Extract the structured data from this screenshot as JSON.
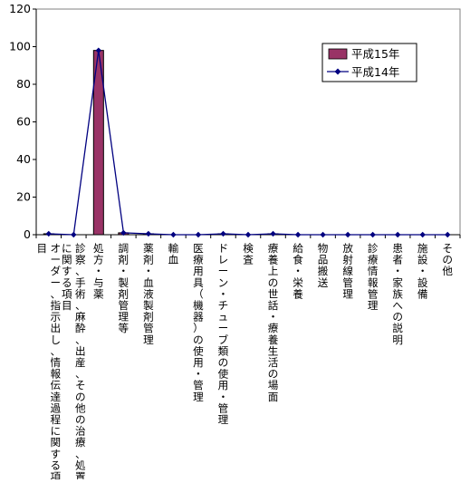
{
  "chart_data": {
    "type": "bar",
    "title": "",
    "xlabel": "",
    "ylabel": "",
    "ylim": [
      0,
      120
    ],
    "yticks": [
      0,
      20,
      40,
      60,
      80,
      100,
      120
    ],
    "grid": false,
    "legend_position": "top-right",
    "categories": [
      "オーダー、指示出し、情報伝達過程に関する項目",
      "診察、手術、麻酔、出産、その他の治療、処置に関する項目",
      "処方・与薬",
      "調剤・製剤管理等",
      "薬剤・血液製剤管理",
      "輸血",
      "医療用具（機器）の使用・管理",
      "ドレーン・チューブ類の使用・管理",
      "検査",
      "療養上の世話・療養生活の場面",
      "給食・栄養",
      "物品搬送",
      "放射線管理",
      "診療情報管理",
      "患者・家族への説明",
      "施設・設備",
      "その他"
    ],
    "series": [
      {
        "name": "平成15年",
        "kind": "bar",
        "color": "#993366",
        "values": [
          0.5,
          0,
          98,
          1,
          0.5,
          0,
          0,
          0.5,
          0,
          0.5,
          0,
          0,
          0,
          0,
          0,
          0,
          0
        ]
      },
      {
        "name": "平成14年",
        "kind": "line",
        "color": "#000080",
        "values": [
          0.5,
          0,
          98,
          1,
          0.5,
          0,
          0,
          0.5,
          0,
          0.5,
          0,
          0,
          0,
          0,
          0,
          0,
          0
        ]
      }
    ]
  }
}
